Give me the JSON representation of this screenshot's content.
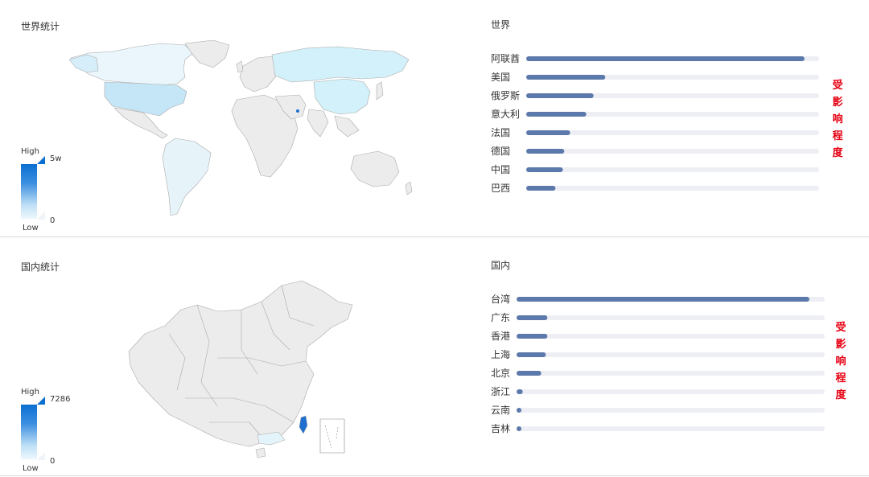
{
  "world": {
    "map_title": "世界统计",
    "bar_title": "世界",
    "legend": {
      "high": "High",
      "low": "Low",
      "max": "5w",
      "min": "0"
    },
    "side_label": [
      "受",
      "影",
      "响",
      "程",
      "度"
    ]
  },
  "china": {
    "map_title": "国内统计",
    "bar_title": "国内",
    "legend": {
      "high": "High",
      "low": "Low",
      "max": "7286",
      "min": "0"
    },
    "side_label": [
      "受",
      "影",
      "响",
      "程",
      "度"
    ]
  },
  "colors": {
    "bar": "#5b79aa",
    "track": "#eeeef5",
    "side_label": "#e60012"
  },
  "chart_data": [
    {
      "type": "bar",
      "orientation": "horizontal",
      "title": "世界",
      "categories": [
        "阿联酋",
        "美国",
        "俄罗斯",
        "意大利",
        "法国",
        "德国",
        "中国",
        "巴西"
      ],
      "values": [
        0.95,
        0.27,
        0.23,
        0.205,
        0.15,
        0.13,
        0.125,
        0.1
      ],
      "xlim": [
        0,
        1
      ]
    },
    {
      "type": "bar",
      "orientation": "horizontal",
      "title": "国内",
      "categories": [
        "台湾",
        "广东",
        "香港",
        "上海",
        "北京",
        "浙江",
        "云南",
        "吉林"
      ],
      "values": [
        0.95,
        0.1,
        0.1,
        0.095,
        0.08,
        0.02,
        0.015,
        0.01
      ],
      "xlim": [
        0,
        1
      ]
    }
  ]
}
